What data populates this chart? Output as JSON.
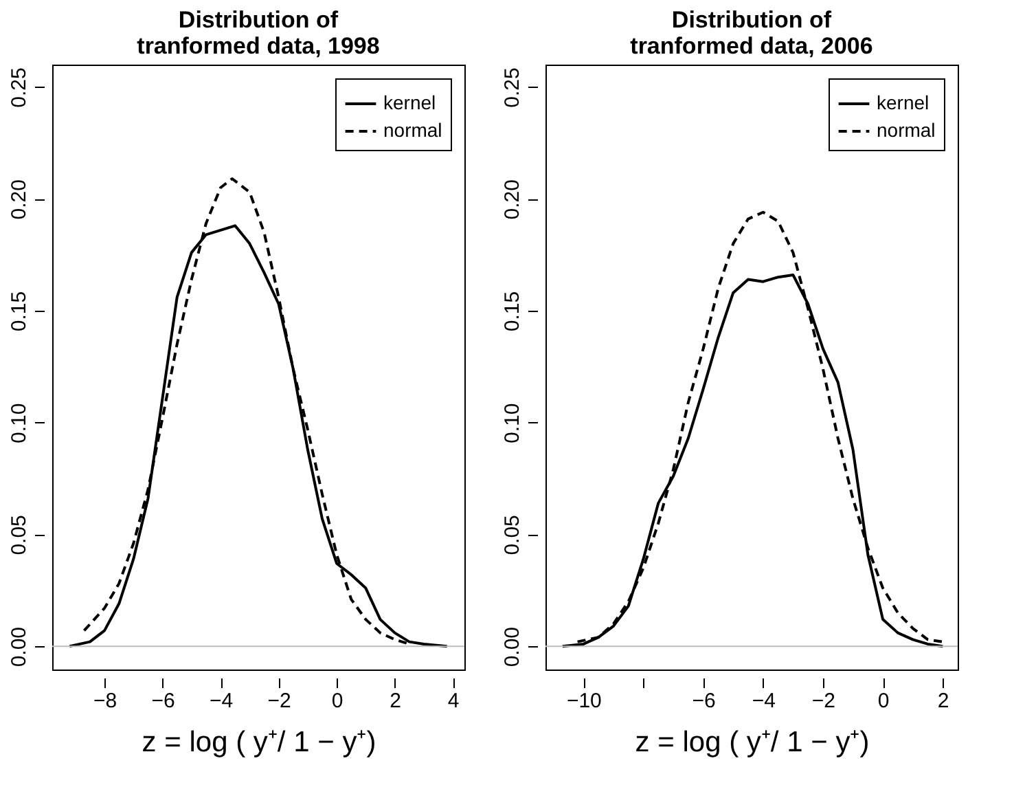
{
  "chart_data": [
    {
      "type": "line",
      "title": "Distribution of\ntranformed data, 1998",
      "xlabel": "z  =  log ( y⁺/ 1  −  y⁺)",
      "xlim": [
        -9.8,
        4.4
      ],
      "ylim": [
        -0.0104,
        0.26
      ],
      "xticks": [
        -8,
        -6,
        -4,
        -2,
        0,
        2,
        4
      ],
      "yticks": [
        {
          "value": 0,
          "label": "0.00"
        },
        {
          "value": 0.05,
          "label": "0.05"
        },
        {
          "value": 0.1,
          "label": "0.10"
        },
        {
          "value": 0.15,
          "label": "0.15"
        },
        {
          "value": 0.2,
          "label": "0.20"
        },
        {
          "value": 0.25,
          "label": "0.25"
        }
      ],
      "legend": "top right",
      "grid": false,
      "ref_lines": [
        {
          "axis": "y",
          "value": 0,
          "color": "#bebebe"
        }
      ],
      "series": [
        {
          "name": "kernel",
          "color": "#000000",
          "line_style": "solid",
          "x": [
            -9.2,
            -8.5,
            -8,
            -7.5,
            -7,
            -6.5,
            -6,
            -5.5,
            -5,
            -4.5,
            -4,
            -3.5,
            -3,
            -2.5,
            -2,
            -1.5,
            -1,
            -0.5,
            0,
            0.5,
            1,
            1.5,
            2,
            2.5,
            3,
            3.8
          ],
          "values": [
            0.0,
            0.002,
            0.007,
            0.019,
            0.039,
            0.066,
            0.111,
            0.156,
            0.176,
            0.184,
            0.186,
            0.188,
            0.18,
            0.167,
            0.153,
            0.124,
            0.088,
            0.057,
            0.037,
            0.032,
            0.026,
            0.012,
            0.006,
            0.002,
            0.001,
            0.0
          ]
        },
        {
          "name": "normal",
          "color": "#000000",
          "line_style": "dashed",
          "x": [
            -8.7,
            -8,
            -7.5,
            -7,
            -6.5,
            -6,
            -5.5,
            -5,
            -4.5,
            -4,
            -3.6,
            -3,
            -2.5,
            -2,
            -1.5,
            -1,
            -0.5,
            0,
            0.5,
            1,
            1.5,
            2,
            2.5
          ],
          "values": [
            0.007,
            0.017,
            0.028,
            0.046,
            0.07,
            0.102,
            0.135,
            0.164,
            0.189,
            0.205,
            0.209,
            0.203,
            0.185,
            0.156,
            0.124,
            0.097,
            0.068,
            0.041,
            0.021,
            0.012,
            0.006,
            0.003,
            0.001
          ]
        }
      ]
    },
    {
      "type": "line",
      "title": "Distribution of\ntranformed data, 2006",
      "xlabel": "z  =  log ( y⁺/ 1  −  y⁺)",
      "xlim": [
        -11.27,
        2.5
      ],
      "ylim": [
        -0.0104,
        0.26
      ],
      "xticks": [
        -10,
        {
          "value": -8,
          "label": null
        },
        -6,
        -4,
        -2,
        0,
        2
      ],
      "yticks": [
        {
          "value": 0,
          "label": "0.00"
        },
        {
          "value": 0.05,
          "label": "0.05"
        },
        {
          "value": 0.1,
          "label": "0.10"
        },
        {
          "value": 0.15,
          "label": "0.15"
        },
        {
          "value": 0.2,
          "label": "0.20"
        },
        {
          "value": 0.25,
          "label": "0.25"
        }
      ],
      "legend": "top right",
      "grid": false,
      "ref_lines": [
        {
          "axis": "y",
          "value": 0,
          "color": "#bebebe"
        }
      ],
      "series": [
        {
          "name": "kernel",
          "color": "#000000",
          "line_style": "solid",
          "x": [
            -10.7,
            -10,
            -9.5,
            -9,
            -8.5,
            -8,
            -7.5,
            -7,
            -6.5,
            -6,
            -5.5,
            -5,
            -4.5,
            -4,
            -3.5,
            -3,
            -2.5,
            -2,
            -1.5,
            -1,
            -0.5,
            0,
            0.5,
            1,
            1.5,
            2
          ],
          "values": [
            0.0,
            0.001,
            0.004,
            0.009,
            0.018,
            0.039,
            0.064,
            0.076,
            0.093,
            0.115,
            0.138,
            0.158,
            0.164,
            0.163,
            0.165,
            0.166,
            0.153,
            0.133,
            0.118,
            0.088,
            0.041,
            0.012,
            0.006,
            0.003,
            0.001,
            0.0
          ]
        },
        {
          "name": "normal",
          "color": "#000000",
          "line_style": "dashed",
          "x": [
            -10.2,
            -9.5,
            -9,
            -8.5,
            -8,
            -7.5,
            -7,
            -6.5,
            -6,
            -5.5,
            -5,
            -4.5,
            -4,
            -3.5,
            -3,
            -2.5,
            -2,
            -1.5,
            -1,
            -0.5,
            0,
            0.5,
            1,
            1.5,
            2
          ],
          "values": [
            0.002,
            0.004,
            0.01,
            0.02,
            0.035,
            0.055,
            0.079,
            0.109,
            0.133,
            0.16,
            0.18,
            0.191,
            0.194,
            0.19,
            0.176,
            0.151,
            0.124,
            0.093,
            0.066,
            0.044,
            0.026,
            0.015,
            0.008,
            0.003,
            0.002
          ]
        }
      ]
    }
  ]
}
